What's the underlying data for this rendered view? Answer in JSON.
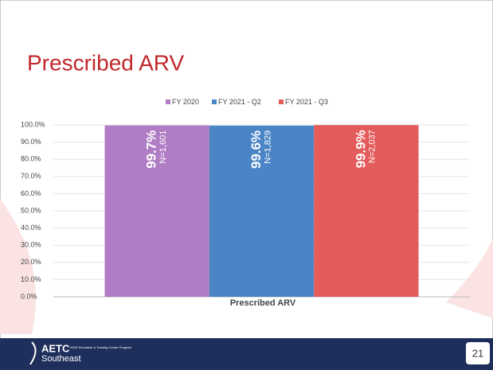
{
  "chart_data": {
    "type": "bar",
    "title": "Prescribed ARV",
    "categories": [
      "Prescribed ARV"
    ],
    "series": [
      {
        "name": "FY 2020",
        "color": "#b07cc4",
        "values": [
          99.7
        ],
        "value_labels": [
          "99.7%"
        ],
        "annotations": [
          "N=1,601"
        ]
      },
      {
        "name": "FY 2021 - Q2",
        "color": "#4a85c6",
        "values": [
          99.6
        ],
        "value_labels": [
          "99.6%"
        ],
        "annotations": [
          "N=1,829"
        ]
      },
      {
        "name": "FY 2021 - Q3",
        "color": "#e35b5a",
        "values": [
          99.9
        ],
        "value_labels": [
          "99.9%"
        ],
        "annotations": [
          "N=2,037"
        ]
      }
    ],
    "ylim": [
      0,
      100
    ],
    "yticks": [
      {
        "value": 0,
        "label": "0.0%"
      },
      {
        "value": 10,
        "label": "10.0%"
      },
      {
        "value": 20,
        "label": "20.0%"
      },
      {
        "value": 30,
        "label": "30.0%"
      },
      {
        "value": 40,
        "label": "40.0%"
      },
      {
        "value": 50,
        "label": "50.0%"
      },
      {
        "value": 60,
        "label": "60.0%"
      },
      {
        "value": 70,
        "label": "70.0%"
      },
      {
        "value": 80,
        "label": "80.0%"
      },
      {
        "value": 90,
        "label": "90.0%"
      },
      {
        "value": 100,
        "label": "100.0%"
      }
    ],
    "grid": true,
    "legend": "top"
  },
  "footer": {
    "logo": "AETC",
    "program": "AIDS Education & Training Center Program",
    "region": "Southeast",
    "page_number": "21"
  }
}
